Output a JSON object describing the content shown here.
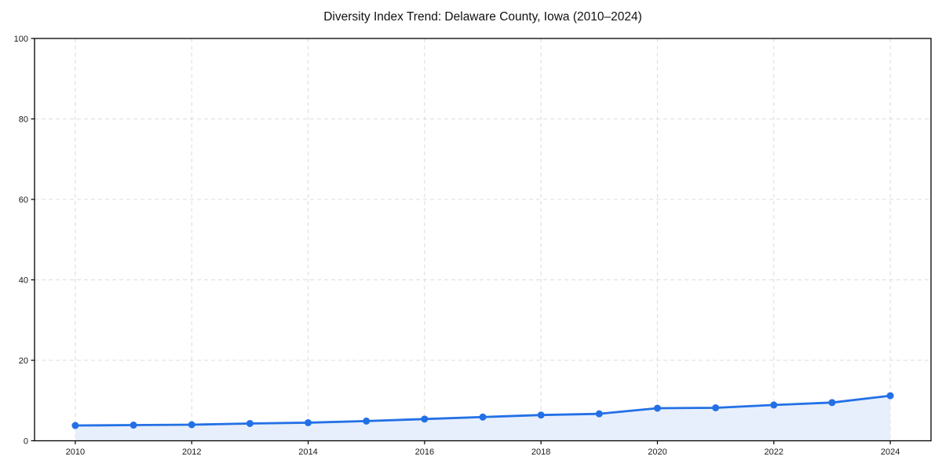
{
  "chart_data": {
    "type": "line",
    "title": "Diversity Index Trend: Delaware County, Iowa (2010–2024)",
    "xlabel": "",
    "ylabel": "",
    "x": [
      2010,
      2011,
      2012,
      2013,
      2014,
      2015,
      2016,
      2017,
      2018,
      2019,
      2020,
      2021,
      2022,
      2023,
      2024
    ],
    "series": [
      {
        "name": "Diversity Index",
        "values": [
          3.8,
          3.9,
          4.0,
          4.3,
          4.5,
          4.9,
          5.4,
          5.9,
          6.4,
          6.7,
          8.1,
          8.2,
          8.9,
          9.5,
          11.2
        ]
      }
    ],
    "xlim": [
      2009.3,
      2024.7
    ],
    "ylim": [
      0,
      100
    ],
    "x_ticks": [
      2010,
      2012,
      2014,
      2016,
      2018,
      2020,
      2022,
      2024
    ],
    "y_ticks": [
      0,
      20,
      40,
      60,
      80,
      100
    ],
    "grid": true,
    "grid_style": "dashed",
    "legend_position": "none",
    "area_fill_to": 0,
    "style": {
      "line_color": "#2370e6",
      "marker_color": "#2370e6",
      "area_fill_color": "#e7effc",
      "grid_color": "#dcdcdc",
      "spine_color": "#000000",
      "background_color": "#ffffff",
      "title_color": "#111111",
      "tick_label_color": "#1a1a1a"
    }
  }
}
